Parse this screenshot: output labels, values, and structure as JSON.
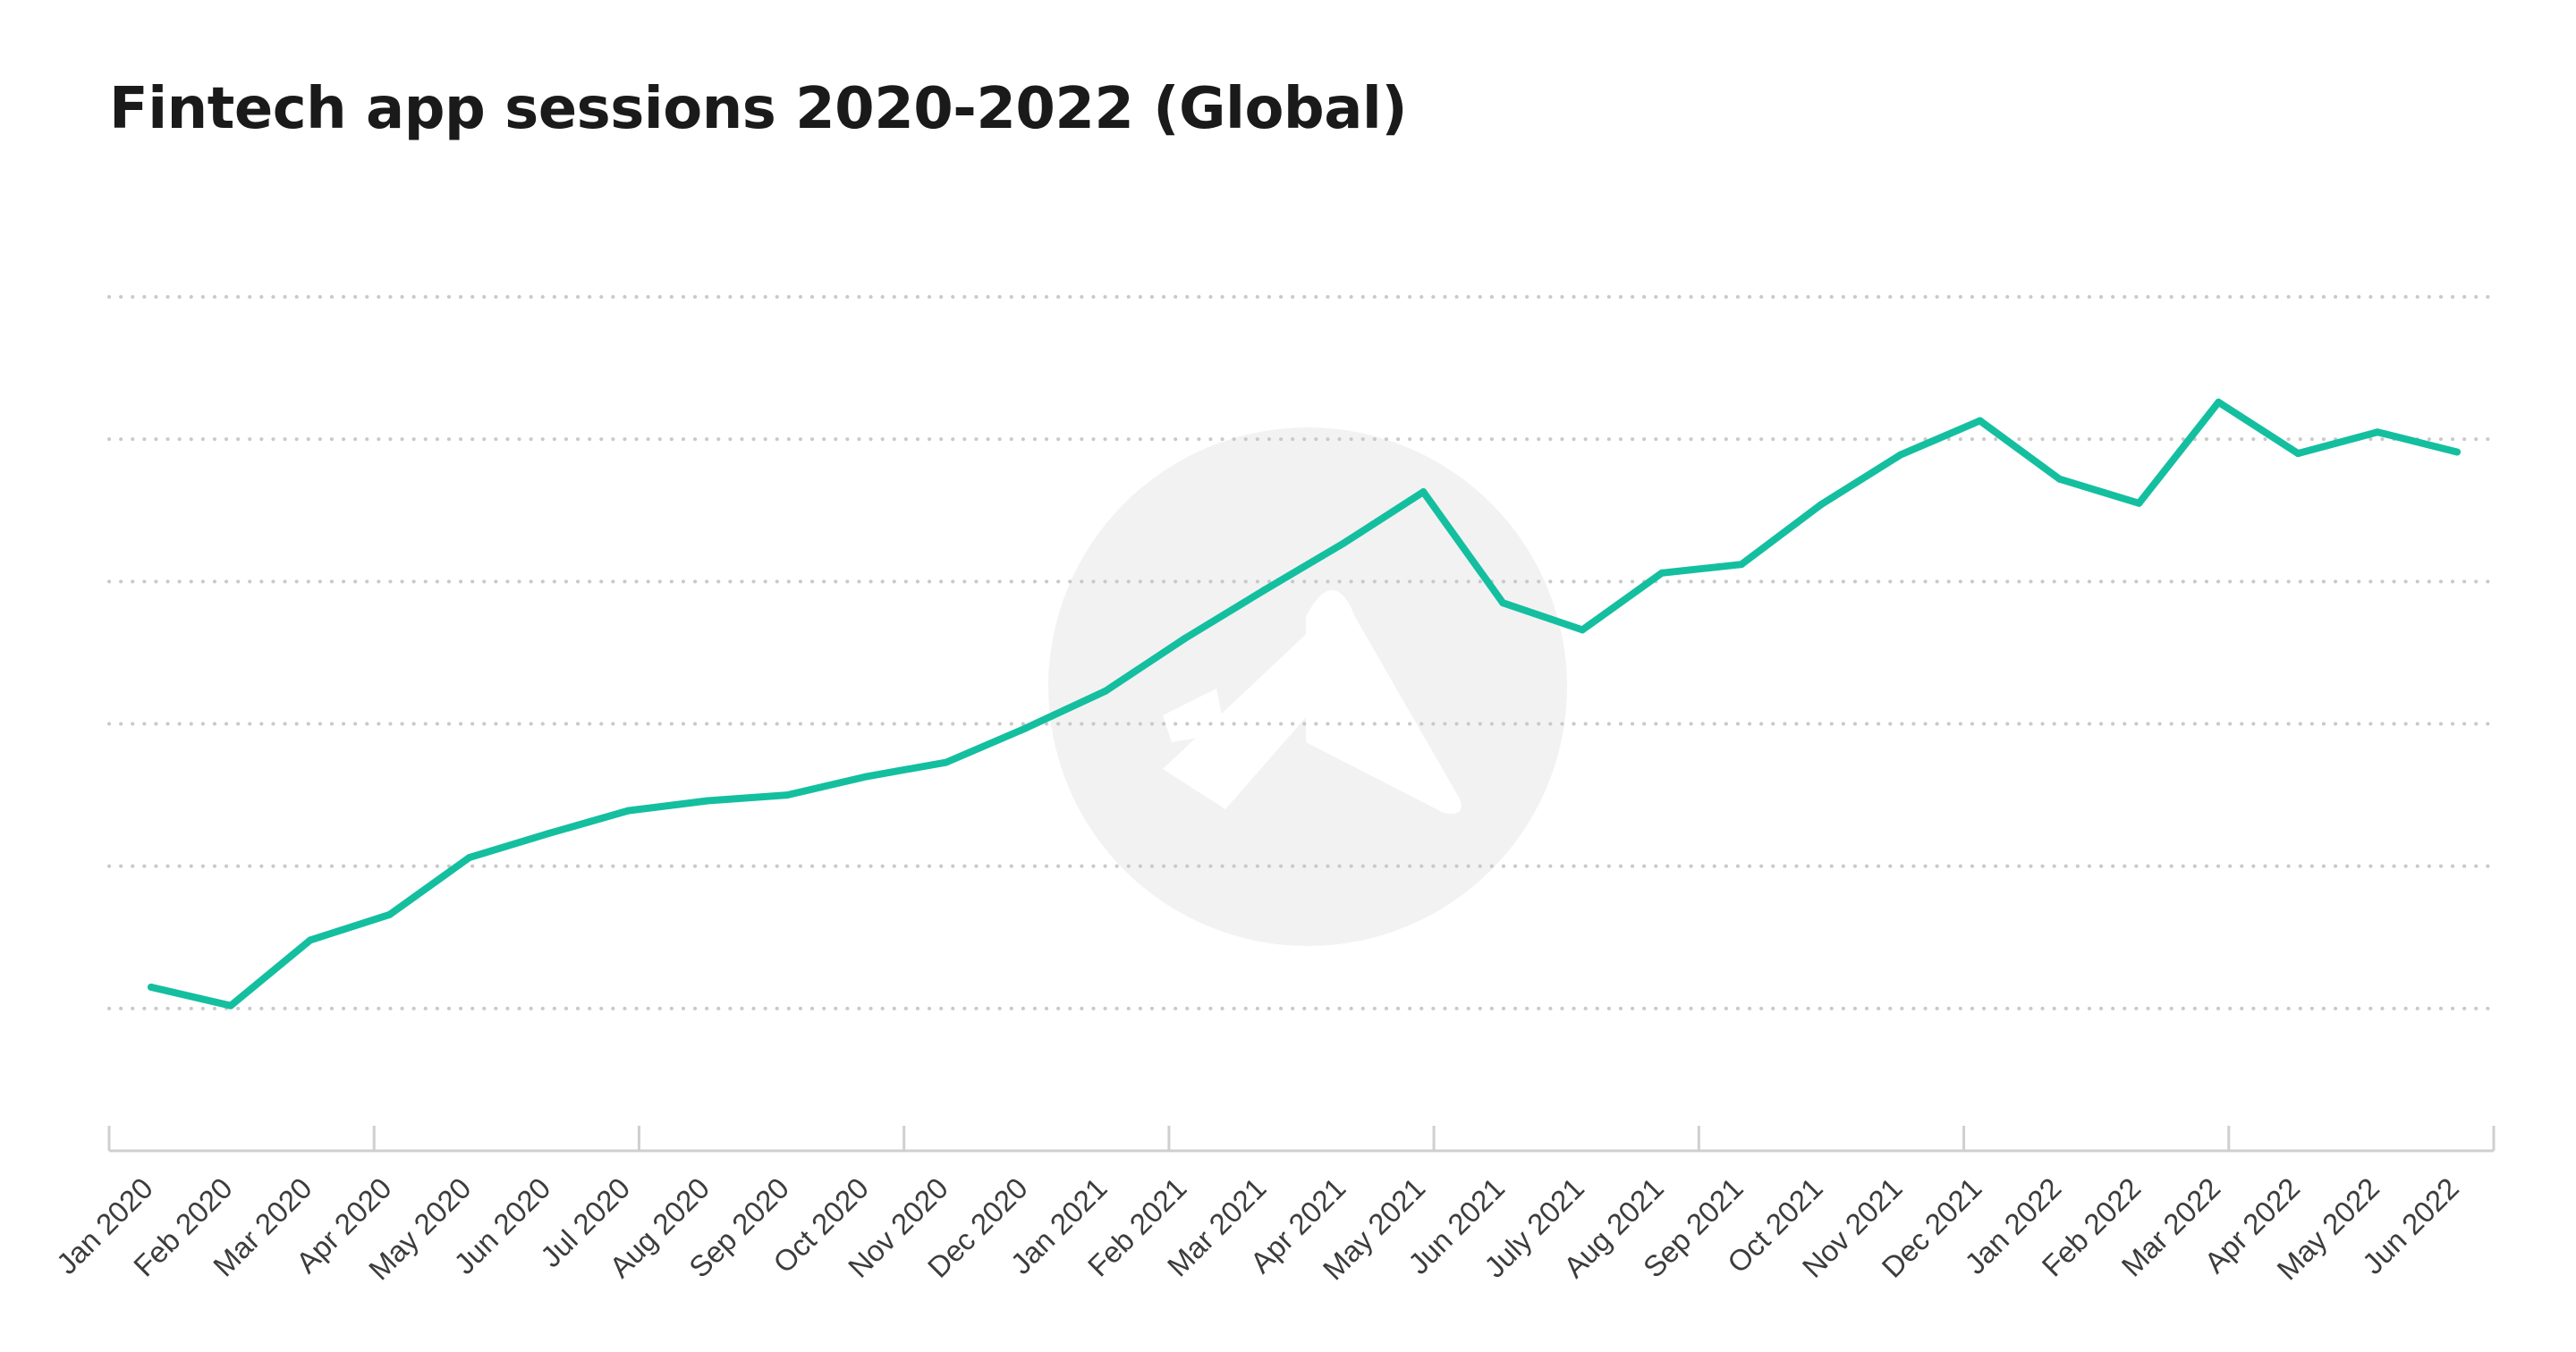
{
  "chart_data": {
    "type": "line",
    "title": "Fintech app sessions 2020-2022 (Global)",
    "xlabel": "",
    "ylabel": "",
    "x": [
      "Jan 2020",
      "Feb 2020",
      "Mar 2020",
      "Apr 2020",
      "May 2020",
      "Jun 2020",
      "Jul 2020",
      "Aug 2020",
      "Sep 2020",
      "Oct 2020",
      "Nov 2020",
      "Dec 2020",
      "Jan 2021",
      "Feb 2021",
      "Mar 2021",
      "Apr 2021",
      "May 2021",
      "Jun 2021",
      "July 2021",
      "Aug 2021",
      "Sep 2021",
      "Oct 2021",
      "Nov 2021",
      "Dec 2021",
      "Jan 2022",
      "Feb 2022",
      "Mar 2022",
      "Apr 2022",
      "May 2022",
      "Jun 2022"
    ],
    "series": [
      {
        "values": [
          0.15,
          0.02,
          0.48,
          0.66,
          1.06,
          1.23,
          1.39,
          1.46,
          1.5,
          1.63,
          1.73,
          1.97,
          2.23,
          2.6,
          2.94,
          3.27,
          3.63,
          2.85,
          2.66,
          3.06,
          3.12,
          3.54,
          3.89,
          4.13,
          3.72,
          3.55,
          4.26,
          3.9,
          4.05,
          3.91
        ]
      }
    ],
    "ylim": [
      -1,
      5
    ],
    "y_gridlines": [
      0,
      1,
      2,
      3,
      4,
      5
    ],
    "grid": true,
    "grid_style": "dotted",
    "y_tick_labels_shown": false,
    "line_color": "#14bf9f",
    "grid_color": "#c9c9c9",
    "axis_color": "#cfcfcf",
    "text_color": "#3c3c3c",
    "watermark": "logo"
  }
}
